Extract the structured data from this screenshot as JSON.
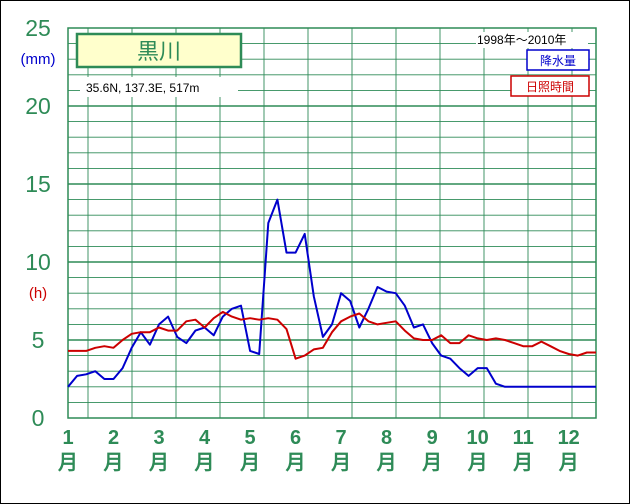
{
  "colors": {
    "grid": "#2e8b57",
    "precip": "#0000cc",
    "sunshine": "#cc0000",
    "title_bg": "#ffffcc"
  },
  "header": {
    "station": "黒川",
    "coords": "35.6N,  137.3E,  517m",
    "period": "1998年〜2010年"
  },
  "legend": {
    "precip": "降水量",
    "sunshine": "日照時間"
  },
  "chart_data": {
    "type": "line",
    "x_unit": "月",
    "categories": [
      "1",
      "2",
      "3",
      "4",
      "5",
      "6",
      "7",
      "8",
      "9",
      "10",
      "11",
      "12"
    ],
    "ylim": [
      0,
      25
    ],
    "yticks": [
      "0",
      "5",
      "10",
      "15",
      "20",
      "25"
    ],
    "ylabel_precip": "(mm)",
    "ylabel_sunshine": "(h)",
    "grid": true,
    "legend_position": "top-right",
    "series": [
      {
        "name": "降水量",
        "key": "precip",
        "x": [
          1.0,
          1.2,
          1.4,
          1.6,
          1.8,
          2.0,
          2.2,
          2.4,
          2.6,
          2.8,
          3.0,
          3.2,
          3.4,
          3.6,
          3.8,
          4.0,
          4.2,
          4.4,
          4.6,
          4.8,
          5.0,
          5.2,
          5.4,
          5.6,
          5.8,
          6.0,
          6.2,
          6.4,
          6.6,
          6.8,
          7.0,
          7.2,
          7.4,
          7.6,
          7.8,
          8.0,
          8.2,
          8.4,
          8.6,
          8.8,
          9.0,
          9.2,
          9.4,
          9.6,
          9.8,
          10.0,
          10.2,
          10.4,
          10.6,
          10.8,
          11.0,
          11.2,
          11.4,
          11.6,
          11.8,
          12.0,
          12.2,
          12.4,
          12.6
        ],
        "values": [
          2.0,
          2.7,
          2.8,
          3.0,
          2.5,
          2.5,
          3.2,
          4.5,
          5.5,
          4.7,
          6.0,
          6.5,
          5.2,
          4.8,
          5.6,
          5.8,
          5.3,
          6.5,
          7.0,
          7.2,
          4.3,
          4.1,
          12.5,
          14.0,
          10.6,
          10.6,
          11.8,
          7.8,
          5.2,
          6.0,
          8.0,
          7.5,
          5.8,
          7.0,
          8.4,
          8.1,
          8.0,
          7.2,
          5.8,
          6.0,
          4.8,
          4.0,
          3.8,
          3.2,
          2.7,
          3.2,
          3.2,
          2.2,
          2.0,
          2.0,
          2.0,
          2.0,
          2.0,
          2.0,
          2.0,
          2.0,
          2.0,
          2.0,
          2.0
        ]
      },
      {
        "name": "日照時間",
        "key": "sunshine",
        "x": [
          1.0,
          1.2,
          1.4,
          1.6,
          1.8,
          2.0,
          2.2,
          2.4,
          2.6,
          2.8,
          3.0,
          3.2,
          3.4,
          3.6,
          3.8,
          4.0,
          4.2,
          4.4,
          4.6,
          4.8,
          5.0,
          5.2,
          5.4,
          5.6,
          5.8,
          6.0,
          6.2,
          6.4,
          6.6,
          6.8,
          7.0,
          7.2,
          7.4,
          7.6,
          7.8,
          8.0,
          8.2,
          8.4,
          8.6,
          8.8,
          9.0,
          9.2,
          9.4,
          9.6,
          9.8,
          10.0,
          10.2,
          10.4,
          10.6,
          10.8,
          11.0,
          11.2,
          11.4,
          11.6,
          11.8,
          12.0,
          12.2,
          12.4,
          12.6
        ],
        "values": [
          4.3,
          4.3,
          4.3,
          4.5,
          4.6,
          4.5,
          5.0,
          5.4,
          5.5,
          5.5,
          5.8,
          5.6,
          5.6,
          6.2,
          6.3,
          5.8,
          6.4,
          6.8,
          6.5,
          6.3,
          6.4,
          6.3,
          6.4,
          6.3,
          5.7,
          3.8,
          4.0,
          4.4,
          4.5,
          5.5,
          6.2,
          6.5,
          6.7,
          6.2,
          6.0,
          6.1,
          6.2,
          5.6,
          5.1,
          5.0,
          5.0,
          5.3,
          4.8,
          4.8,
          5.3,
          5.1,
          5.0,
          5.1,
          5.0,
          4.8,
          4.6,
          4.6,
          4.9,
          4.6,
          4.3,
          4.1,
          4.0,
          4.2,
          4.2
        ]
      }
    ]
  }
}
